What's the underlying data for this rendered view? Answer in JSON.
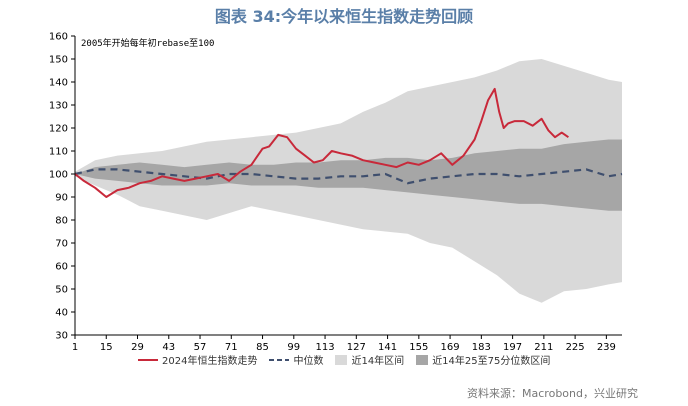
{
  "title": "图表 34:今年以来恒生指数走势回顾",
  "source": "资料来源：Macrobond，兴业研究",
  "chart_data": {
    "type": "line",
    "annotation": "2005年开始每年初rebase至100",
    "ylim": [
      30,
      160
    ],
    "yticks": [
      30,
      40,
      50,
      60,
      70,
      80,
      90,
      100,
      110,
      120,
      130,
      140,
      150,
      160
    ],
    "xlim": [
      1,
      246
    ],
    "xticks": [
      1,
      15,
      29,
      43,
      57,
      71,
      85,
      99,
      113,
      127,
      141,
      155,
      169,
      183,
      197,
      211,
      225,
      239
    ],
    "colors": {
      "hsi_2024": "#c8293a",
      "median": "#3f4f6e",
      "range_14y": "#d9d9d9",
      "range_25_75": "#a6a6a6"
    },
    "series": [
      {
        "name": "2024年恒生指数走势",
        "type": "line",
        "x": [
          1,
          5,
          10,
          15,
          20,
          25,
          30,
          35,
          40,
          45,
          50,
          55,
          60,
          65,
          70,
          75,
          80,
          85,
          88,
          92,
          96,
          100,
          104,
          108,
          112,
          116,
          120,
          125,
          130,
          135,
          140,
          145,
          150,
          155,
          160,
          165,
          170,
          175,
          180,
          183,
          186,
          189,
          191,
          193,
          195,
          198,
          202,
          206,
          210,
          213,
          216,
          219,
          222
        ],
        "y": [
          100,
          97,
          94,
          90,
          93,
          94,
          96,
          97,
          99,
          98,
          97,
          98,
          99,
          100,
          97,
          101,
          104,
          111,
          112,
          117,
          116,
          111,
          108,
          105,
          106,
          110,
          109,
          108,
          106,
          105,
          104,
          103,
          105,
          104,
          106,
          109,
          104,
          108,
          115,
          123,
          132,
          137,
          127,
          120,
          122,
          123,
          123,
          121,
          124,
          119,
          116,
          118,
          116
        ]
      },
      {
        "name": "中位数",
        "type": "dashed-line",
        "x": [
          1,
          10,
          20,
          30,
          40,
          50,
          60,
          70,
          80,
          90,
          100,
          110,
          120,
          130,
          140,
          150,
          160,
          170,
          180,
          190,
          200,
          210,
          220,
          230,
          240,
          246
        ],
        "y": [
          100,
          102,
          102,
          101,
          100,
          99,
          98,
          100,
          100,
          99,
          98,
          98,
          99,
          99,
          100,
          96,
          98,
          99,
          100,
          100,
          99,
          100,
          101,
          102,
          99,
          100
        ]
      },
      {
        "name": "近14年区间",
        "type": "band",
        "x": [
          1,
          10,
          20,
          30,
          40,
          50,
          60,
          70,
          80,
          90,
          100,
          110,
          120,
          130,
          140,
          150,
          160,
          170,
          180,
          190,
          200,
          210,
          220,
          230,
          240,
          246
        ],
        "low": [
          99,
          95,
          91,
          86,
          84,
          82,
          80,
          83,
          86,
          84,
          82,
          80,
          78,
          76,
          75,
          74,
          70,
          68,
          62,
          56,
          48,
          44,
          49,
          50,
          52,
          53
        ],
        "high": [
          101,
          106,
          108,
          109,
          110,
          112,
          114,
          115,
          116,
          117,
          118,
          120,
          122,
          127,
          131,
          136,
          138,
          140,
          142,
          145,
          149,
          150,
          147,
          144,
          141,
          140
        ]
      },
      {
        "name": "近14年25至75分位数区间",
        "type": "band",
        "x": [
          1,
          10,
          20,
          30,
          40,
          50,
          60,
          70,
          80,
          90,
          100,
          110,
          120,
          130,
          140,
          150,
          160,
          170,
          180,
          190,
          200,
          210,
          220,
          230,
          240,
          246
        ],
        "low": [
          100,
          98,
          97,
          96,
          95,
          95,
          95,
          96,
          95,
          95,
          95,
          94,
          94,
          94,
          93,
          92,
          91,
          90,
          89,
          88,
          87,
          87,
          86,
          85,
          84,
          84
        ],
        "high": [
          100,
          103,
          104,
          105,
          104,
          103,
          104,
          105,
          104,
          104,
          105,
          105,
          106,
          106,
          107,
          107,
          106,
          107,
          109,
          110,
          111,
          111,
          113,
          114,
          115,
          115
        ]
      }
    ],
    "legend": [
      "2024年恒生指数走势",
      "中位数",
      "近14年区间",
      "近14年25至75分位数区间"
    ]
  }
}
